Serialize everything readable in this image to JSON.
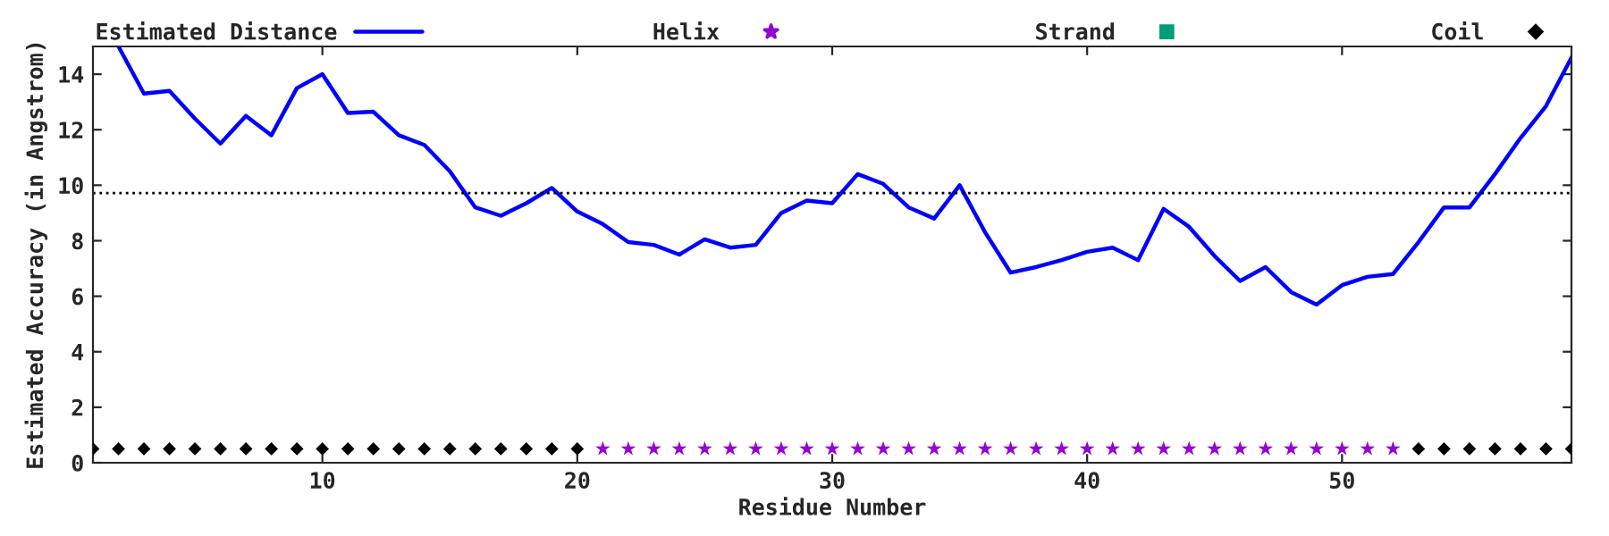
{
  "chart_data": {
    "type": "line",
    "xlabel": "Residue Number",
    "ylabel": "Estimated Accuracy (in Angstrom)",
    "xlim": [
      1,
      59
    ],
    "xticks": [
      10,
      20,
      30,
      40,
      50
    ],
    "ylim": [
      0,
      15
    ],
    "yticks": [
      0,
      2,
      4,
      6,
      8,
      10,
      12,
      14
    ],
    "grid": false,
    "legend": "top",
    "ref_lines": [
      {
        "axis": "y",
        "value": 9.72,
        "line_style": "dotted",
        "color": "#000000"
      }
    ],
    "series": [
      {
        "name": "Estimated Distance",
        "color": "#0000ff",
        "marker": "none",
        "line_style": "solid",
        "x": [
          2,
          3,
          4,
          5,
          6,
          7,
          8,
          9,
          10,
          11,
          12,
          13,
          14,
          15,
          16,
          17,
          18,
          19,
          20,
          21,
          22,
          23,
          24,
          25,
          26,
          27,
          28,
          29,
          30,
          31,
          32,
          33,
          34,
          35,
          36,
          37,
          38,
          39,
          40,
          41,
          42,
          43,
          44,
          45,
          46,
          47,
          48,
          49,
          50,
          51,
          52,
          53,
          54,
          55,
          56,
          57,
          58,
          59
        ],
        "values": [
          15.0,
          13.3,
          13.4,
          12.4,
          11.5,
          12.5,
          11.8,
          13.5,
          14.0,
          12.6,
          12.65,
          11.8,
          11.45,
          10.5,
          9.2,
          8.9,
          9.35,
          9.9,
          9.05,
          8.6,
          7.95,
          7.85,
          7.5,
          8.05,
          7.75,
          7.85,
          9.0,
          9.45,
          9.35,
          10.4,
          10.05,
          9.2,
          8.8,
          10.0,
          8.3,
          6.85,
          7.05,
          7.3,
          7.6,
          7.75,
          7.3,
          9.15,
          8.5,
          7.45,
          6.55,
          7.05,
          6.15,
          5.7,
          6.4,
          6.7,
          6.8,
          7.95,
          9.2,
          9.2,
          10.4,
          11.7,
          12.85,
          14.6
        ]
      },
      {
        "name": "Helix",
        "type": "scatter",
        "color": "#9400d3",
        "marker": "star",
        "x": [
          21,
          22,
          23,
          24,
          25,
          26,
          27,
          28,
          29,
          30,
          31,
          32,
          33,
          34,
          35,
          36,
          37,
          38,
          39,
          40,
          41,
          42,
          43,
          44,
          45,
          46,
          47,
          48,
          49,
          50,
          51,
          52
        ],
        "values": [
          0.5,
          0.5,
          0.5,
          0.5,
          0.5,
          0.5,
          0.5,
          0.5,
          0.5,
          0.5,
          0.5,
          0.5,
          0.5,
          0.5,
          0.5,
          0.5,
          0.5,
          0.5,
          0.5,
          0.5,
          0.5,
          0.5,
          0.5,
          0.5,
          0.5,
          0.5,
          0.5,
          0.5,
          0.5,
          0.5,
          0.5,
          0.5
        ]
      },
      {
        "name": "Strand",
        "type": "scatter",
        "color": "#009e73",
        "marker": "square"
      },
      {
        "name": "Coil",
        "type": "scatter",
        "color": "#000000",
        "marker": "diamond",
        "x": [
          1,
          2,
          3,
          4,
          5,
          6,
          7,
          8,
          9,
          10,
          11,
          12,
          13,
          14,
          15,
          16,
          17,
          18,
          19,
          20,
          53,
          54,
          55,
          56,
          57,
          58,
          59
        ],
        "values": [
          0.5,
          0.5,
          0.5,
          0.5,
          0.5,
          0.5,
          0.5,
          0.5,
          0.5,
          0.5,
          0.5,
          0.5,
          0.5,
          0.5,
          0.5,
          0.5,
          0.5,
          0.5,
          0.5,
          0.5,
          0.5,
          0.5,
          0.5,
          0.5,
          0.5,
          0.5,
          0.5
        ]
      }
    ]
  }
}
